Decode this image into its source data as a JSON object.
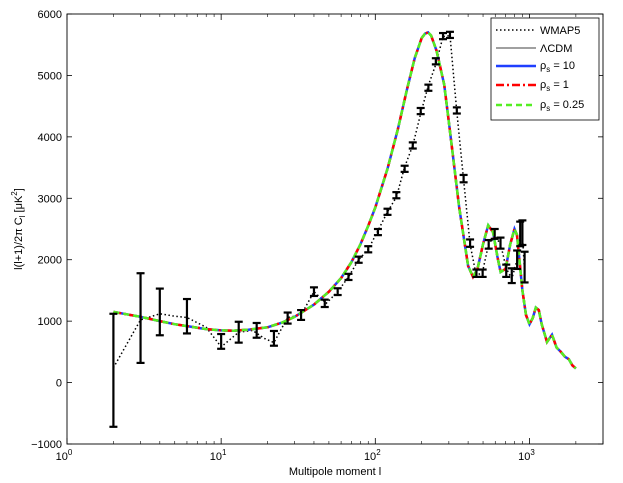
{
  "chart_data": {
    "type": "line",
    "xlabel": "Multipole moment l",
    "ylabel": "l(l+1)/2π C",
    "ylabel_sub": "l",
    "ylabel_unit_pre": "[μK",
    "ylabel_unit_sup": "2",
    "ylabel_unit_post": "]",
    "x_scale": "log",
    "xlim": [
      1,
      3000
    ],
    "ylim": [
      -1000,
      6000
    ],
    "x_ticks": [
      1,
      10,
      100,
      1000
    ],
    "x_tick_base": "10",
    "x_tick_exps": [
      "0",
      "1",
      "2",
      "3"
    ],
    "y_ticks": [
      -1000,
      0,
      1000,
      2000,
      3000,
      4000,
      5000,
      6000
    ],
    "y_tick_labels": [
      "−1000",
      "0",
      "1000",
      "2000",
      "3000",
      "4000",
      "5000",
      "6000"
    ],
    "grid": false,
    "legend_position": "top-right",
    "legend": [
      {
        "label": "WMAP5",
        "sub": "",
        "suffix": "",
        "color": "#000000",
        "style": "dotted"
      },
      {
        "label": "ΛCDM",
        "sub": "",
        "suffix": "",
        "color": "#000000",
        "style": "solid-thin"
      },
      {
        "label": "ρ",
        "sub": "s",
        "suffix": " = 10",
        "color": "#1f3fff",
        "style": "solid-thick"
      },
      {
        "label": "ρ",
        "sub": "s",
        "suffix": " = 1",
        "color": "#ff0000",
        "style": "dashdot"
      },
      {
        "label": "ρ",
        "sub": "s",
        "suffix": " = 0.25",
        "color": "#55ee22",
        "style": "dashed"
      }
    ],
    "model_curve": {
      "x": [
        2,
        3,
        4,
        5,
        6,
        8,
        10,
        12,
        15,
        20,
        25,
        30,
        40,
        50,
        60,
        70,
        80,
        90,
        100,
        120,
        140,
        160,
        180,
        200,
        210,
        220,
        230,
        250,
        280,
        300,
        350,
        400,
        430,
        460,
        500,
        540,
        580,
        620,
        650,
        700,
        750,
        800,
        830,
        860,
        900,
        950,
        1000,
        1050,
        1100,
        1150,
        1200,
        1300,
        1400,
        1500,
        1600,
        1700,
        1800,
        1900,
        2000
      ],
      "y": [
        1150,
        1070,
        1000,
        950,
        920,
        870,
        850,
        845,
        860,
        900,
        980,
        1070,
        1270,
        1480,
        1700,
        1960,
        2250,
        2550,
        2850,
        3480,
        4120,
        4760,
        5280,
        5610,
        5680,
        5700,
        5650,
        5400,
        4850,
        4250,
        2850,
        1900,
        1720,
        1850,
        2250,
        2560,
        2450,
        2050,
        1800,
        1850,
        2250,
        2500,
        2400,
        2000,
        1500,
        1100,
        950,
        1050,
        1220,
        1180,
        950,
        660,
        780,
        570,
        500,
        420,
        380,
        280,
        230
      ]
    },
    "wmap_points": {
      "x": [
        2,
        3,
        4,
        5,
        6,
        8,
        10,
        13,
        16,
        19,
        22,
        27,
        33,
        40,
        48,
        57,
        67,
        78,
        90,
        104,
        120,
        137,
        155,
        175,
        197,
        221,
        247,
        275,
        305,
        338,
        374,
        412,
        453,
        497,
        544,
        595,
        649,
        707,
        768,
        832,
        871,
        900,
        930
      ],
      "y": [
        240,
        1020,
        1120,
        1080,
        1060,
        900,
        580,
        820,
        850,
        720,
        650,
        1060,
        1100,
        1480,
        1290,
        1480,
        1720,
        2000,
        2170,
        2470,
        2780,
        3020,
        3510,
        3860,
        4380,
        4840,
        5180,
        5630,
        5650,
        4410,
        3300,
        2250,
        1730,
        1810,
        2260,
        2380,
        2260,
        1860,
        1690,
        2000,
        2400,
        2400,
        1800
      ],
      "error": [
        0,
        730,
        380,
        300,
        280,
        250,
        200,
        170,
        150,
        130,
        120,
        90,
        80,
        70,
        60,
        55,
        50,
        50,
        50,
        50,
        50,
        50,
        50,
        50,
        50,
        50,
        50,
        50,
        60,
        60,
        60,
        60,
        70,
        80,
        90,
        100,
        120,
        150,
        150,
        200,
        200,
        250,
        250
      ]
    },
    "error_bars_x": [
      2,
      3,
      4,
      6,
      10,
      13,
      17,
      22,
      27,
      33,
      40,
      47,
      57,
      67,
      78,
      90,
      104,
      120,
      137,
      155,
      175,
      197,
      221,
      247,
      275,
      305,
      338,
      374,
      412,
      453,
      497,
      544,
      595,
      649,
      707,
      768,
      832,
      871,
      900,
      930
    ],
    "error_bars_y": [
      200,
      1050,
      1150,
      1080,
      670,
      820,
      850,
      720,
      1050,
      1100,
      1480,
      1290,
      1480,
      1720,
      2000,
      2170,
      2450,
      2780,
      3050,
      3480,
      3860,
      4420,
      4800,
      5230,
      5640,
      5660,
      4430,
      3320,
      2270,
      1780,
      1780,
      2250,
      2420,
      2270,
      1820,
      1740,
      2000,
      2420,
      2440,
      1880
    ],
    "error_bars_err": [
      920,
      730,
      380,
      280,
      120,
      170,
      120,
      120,
      90,
      80,
      70,
      60,
      55,
      50,
      50,
      50,
      50,
      50,
      50,
      50,
      50,
      50,
      50,
      50,
      50,
      50,
      50,
      60,
      60,
      60,
      60,
      70,
      80,
      90,
      100,
      120,
      150,
      200,
      200,
      250
    ]
  }
}
